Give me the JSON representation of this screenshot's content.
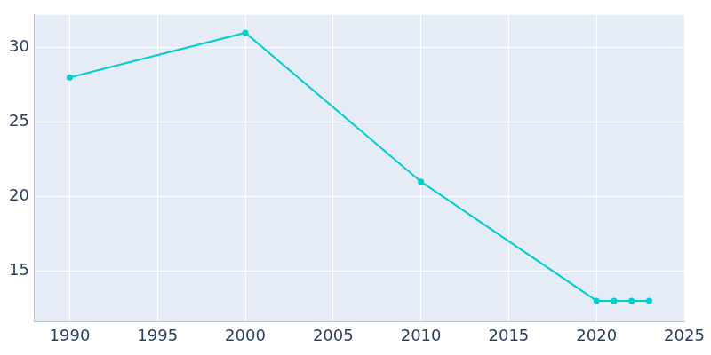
{
  "chart_data": {
    "type": "line",
    "x": [
      1990,
      2000,
      2010,
      2020,
      2021,
      2022,
      2023
    ],
    "values": [
      28,
      31,
      21,
      13,
      13,
      13,
      13
    ],
    "color": "#00cfd0",
    "marker": "circle",
    "xlim": [
      1988,
      2025
    ],
    "xticks": [
      1990,
      1995,
      2000,
      2005,
      2010,
      2015,
      2020,
      2025
    ],
    "ylim": [
      11.6,
      32.2
    ],
    "yticks": [
      15,
      20,
      25,
      30
    ],
    "grid": true
  }
}
